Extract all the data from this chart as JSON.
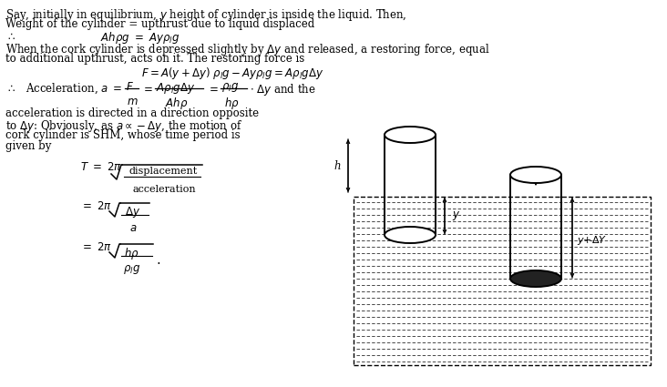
{
  "bg_color": "#ffffff",
  "fig_width": 7.32,
  "fig_height": 4.25,
  "dpi": 100,
  "fs": 8.5,
  "line1": "Say, initially in equilibrium, $y$ height of cylinder is inside the liquid. Then,",
  "line2": "Weight of the cylinder = upthrust due to liquid displaced",
  "line3_therefore": "$\\therefore$",
  "line3_eq": "$Ah\\rho g \\ = \\ Ay\\rho_l g$",
  "line4": "When the cork cylinder is depressed slightly by $\\Delta y$ and released, a restoring force, equal",
  "line5": "to additional upthrust, acts on it. The restoring force is",
  "force_eq": "$F = A(y + \\Delta y)\\ \\rho_l g - Ay\\rho_l g = A\\rho_l g\\Delta y$",
  "accel_label": "Acceleration, $a\\ =$",
  "accel_rest": "$\\cdot\\ \\Delta y$ and the",
  "text_accel1": "acceleration is directed in a direction opposite",
  "text_accel2": "to $\\Delta y$: Obviously, as $a \\propto -\\Delta y$, the motion of",
  "text_accel3": "cork cylinder is SHM, whose time period is",
  "text_accel4": "given by",
  "T_label": "$T\\ =\\ 2\\pi$",
  "eq2_label": "$=\\ 2\\pi$",
  "eq3_label": "$=\\ 2\\pi$",
  "disp_text": "displacement",
  "accel_text": "acceleration",
  "delta_y": "$\\Delta y$",
  "a_var": "$a$",
  "hp_text": "$h\\rho$",
  "rho_lg_text": "$\\rho_l g$",
  "dot": "$.$",
  "h_label": "h",
  "y_label": "$y$",
  "y_delta_label": "$y$+$\\Delta Y$"
}
